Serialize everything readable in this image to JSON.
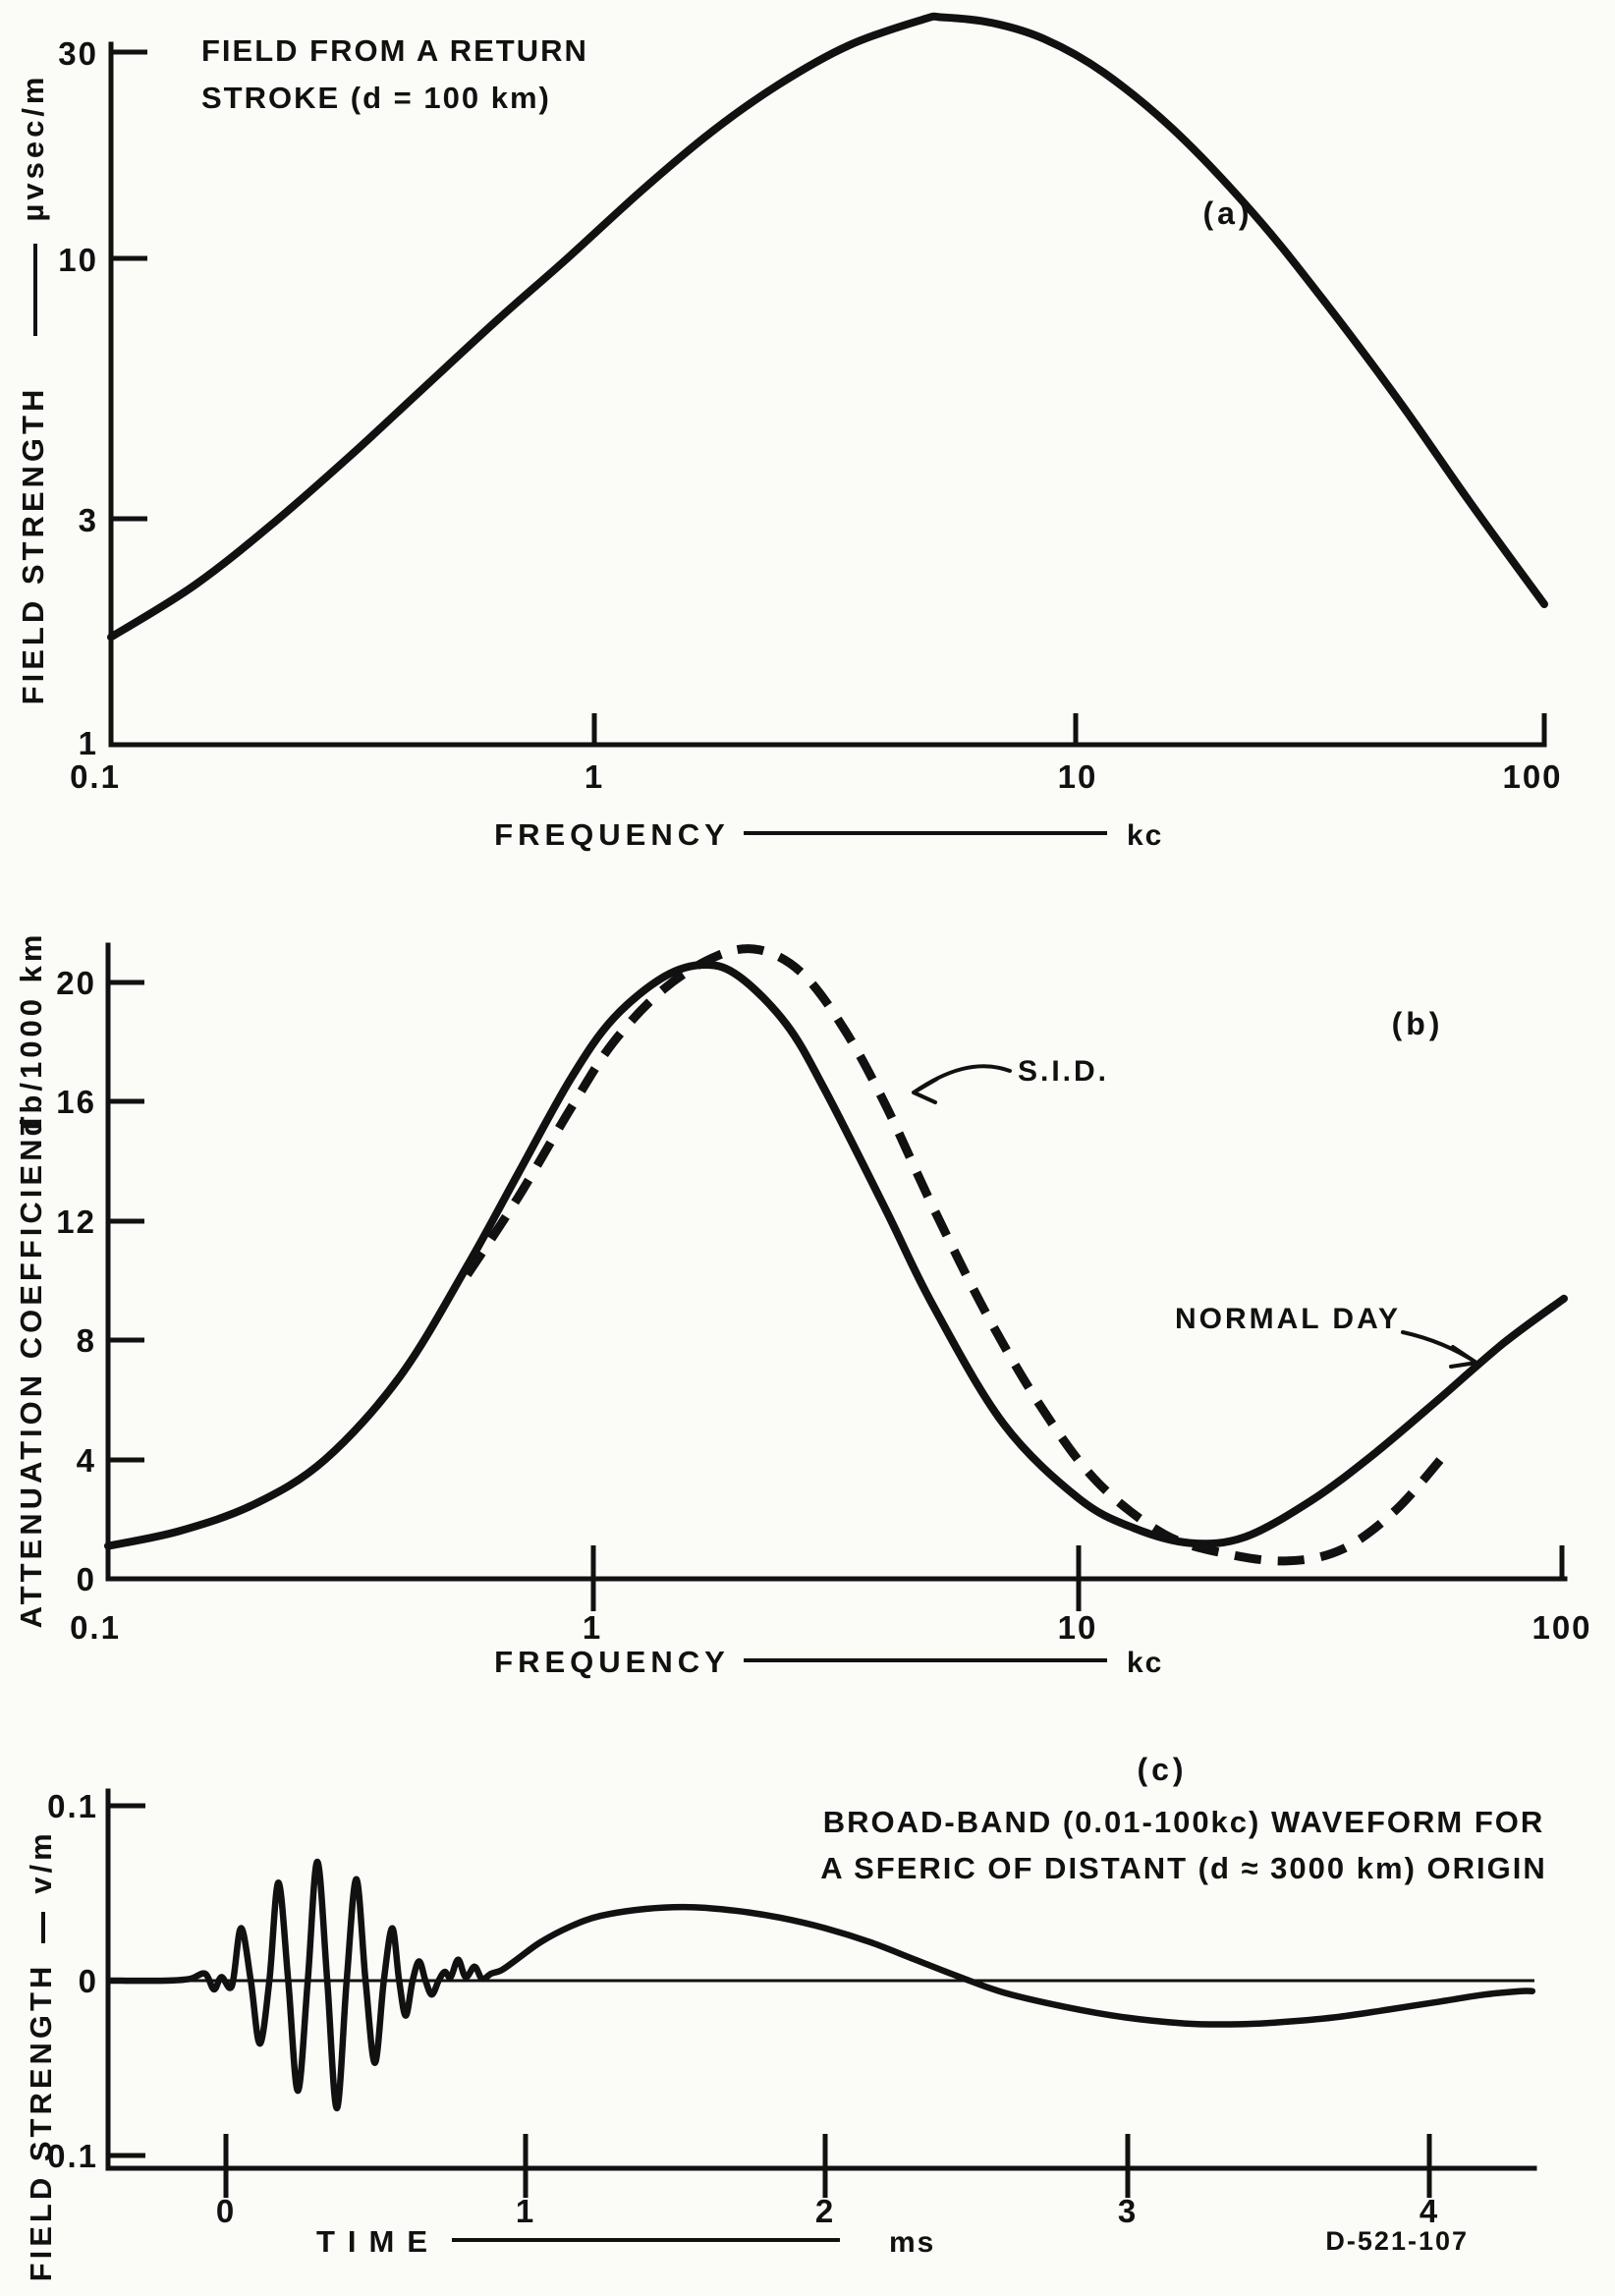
{
  "figure": {
    "code": "D-521-107",
    "ink_color": "#111111",
    "background_color": "#fbfbf8"
  },
  "chart_data": [
    {
      "id": "a",
      "type": "line",
      "panel_label": "(a)",
      "title": "FIELD FROM A RETURN STROKE (d = 100 km)",
      "title_lines": [
        "FIELD  FROM  A  RETURN",
        "STROKE  (d = 100  km)"
      ],
      "xlabel": "FREQUENCY",
      "x_unit": "kc",
      "x_scale": "log",
      "xlim": [
        0.1,
        100
      ],
      "x_ticks": [
        "0.1",
        "1",
        "10",
        "100"
      ],
      "ylabel": "FIELD STRENGTH",
      "y_unit": "µvsec/m",
      "y_scale": "log",
      "ylim": [
        1,
        40
      ],
      "y_ticks": [
        "30",
        "10",
        "3",
        "1"
      ],
      "grid": false,
      "series": [
        {
          "name": "field-strength-spectrum",
          "style": "solid",
          "points": [
            [
              0.1,
              1.7
            ],
            [
              0.15,
              2.2
            ],
            [
              0.22,
              3.0
            ],
            [
              0.32,
              4.2
            ],
            [
              0.45,
              5.8
            ],
            [
              0.65,
              8.2
            ],
            [
              0.9,
              11.0
            ],
            [
              1.3,
              15.5
            ],
            [
              1.8,
              20.5
            ],
            [
              2.5,
              26.0
            ],
            [
              3.5,
              31.5
            ],
            [
              5.0,
              35.8
            ],
            [
              5.5,
              36.2
            ],
            [
              7.0,
              35.2
            ],
            [
              9.0,
              32.5
            ],
            [
              12.0,
              27.5
            ],
            [
              17.0,
              20.5
            ],
            [
              25.0,
              13.5
            ],
            [
              35.0,
              8.8
            ],
            [
              50.0,
              5.4
            ],
            [
              70.0,
              3.3
            ],
            [
              100.0,
              2.0
            ]
          ]
        }
      ]
    },
    {
      "id": "b",
      "type": "line",
      "panel_label": "(b)",
      "title": "",
      "xlabel": "FREQUENCY",
      "x_unit": "kc",
      "x_scale": "log",
      "xlim": [
        0.1,
        100
      ],
      "x_ticks": [
        "0.1",
        "1",
        "10",
        "100"
      ],
      "ylabel": "ATTENUATION COEFFICIENT",
      "y_unit": "db/1000 km",
      "y_scale": "linear",
      "ylim": [
        0,
        22
      ],
      "y_ticks": [
        "20",
        "16",
        "12",
        "8",
        "4",
        "0"
      ],
      "grid": false,
      "series": [
        {
          "name": "normal-day",
          "label": "NORMAL  DAY",
          "style": "solid",
          "points": [
            [
              0.1,
              1.1
            ],
            [
              0.14,
              1.6
            ],
            [
              0.2,
              2.5
            ],
            [
              0.28,
              4.0
            ],
            [
              0.4,
              6.8
            ],
            [
              0.55,
              10.5
            ],
            [
              0.7,
              13.6
            ],
            [
              0.9,
              16.8
            ],
            [
              1.1,
              18.8
            ],
            [
              1.4,
              20.2
            ],
            [
              1.7,
              20.6
            ],
            [
              2.0,
              20.2
            ],
            [
              2.5,
              18.6
            ],
            [
              3.0,
              16.4
            ],
            [
              4.0,
              12.4
            ],
            [
              5.0,
              9.2
            ],
            [
              7.0,
              5.2
            ],
            [
              10.0,
              2.7
            ],
            [
              13.0,
              1.7
            ],
            [
              17.0,
              1.2
            ],
            [
              22.0,
              1.4
            ],
            [
              30.0,
              2.6
            ],
            [
              40.0,
              4.1
            ],
            [
              55.0,
              6.0
            ],
            [
              75.0,
              7.9
            ],
            [
              100.0,
              9.4
            ]
          ]
        },
        {
          "name": "sid",
          "label": "S.I.D.",
          "style": "dashed",
          "points": [
            [
              0.55,
              10.2
            ],
            [
              0.7,
              12.8
            ],
            [
              0.9,
              15.8
            ],
            [
              1.1,
              18.0
            ],
            [
              1.4,
              19.8
            ],
            [
              1.8,
              20.9
            ],
            [
              2.2,
              21.1
            ],
            [
              2.7,
              20.3
            ],
            [
              3.3,
              18.4
            ],
            [
              4.0,
              15.9
            ],
            [
              5.0,
              12.5
            ],
            [
              6.5,
              8.8
            ],
            [
              8.5,
              5.6
            ],
            [
              11.0,
              3.2
            ],
            [
              15.0,
              1.5
            ],
            [
              20.0,
              0.85
            ],
            [
              27.0,
              0.6
            ],
            [
              35.0,
              1.0
            ],
            [
              45.0,
              2.3
            ],
            [
              57.0,
              4.2
            ]
          ]
        }
      ]
    },
    {
      "id": "c",
      "type": "line",
      "panel_label": "(c)",
      "title": "BROAD-BAND (0.01-100kc) WAVEFORM FOR A SFERIC OF DISTANT (d ≈ 3000 km) ORIGIN",
      "title_lines": [
        "BROAD-BAND (0.01-100kc) WAVEFORM FOR",
        "A  SFERIC OF DISTANT  (d ≈ 3000 km) ORIGIN"
      ],
      "xlabel": "TIME",
      "x_unit": "ms",
      "x_scale": "linear",
      "xlim": [
        -0.39,
        4.37
      ],
      "x_ticks": [
        "0",
        "1",
        "2",
        "3",
        "4"
      ],
      "ylabel": "FIELD STRENGTH",
      "y_unit": "v/m",
      "y_scale": "linear",
      "ylim": [
        -0.1,
        0.1
      ],
      "y_ticks": [
        "0.1",
        "0",
        "0.1"
      ],
      "grid": false,
      "series": [
        {
          "name": "sferic-waveform",
          "style": "solid",
          "points": [
            [
              -0.39,
              0
            ],
            [
              -0.2,
              0
            ],
            [
              -0.12,
              0.001
            ],
            [
              -0.07,
              0.004
            ],
            [
              -0.04,
              -0.005
            ],
            [
              -0.015,
              0.002
            ],
            [
              0.02,
              -0.003
            ],
            [
              0.05,
              0.03
            ],
            [
              0.083,
              0
            ],
            [
              0.113,
              -0.036
            ],
            [
              0.145,
              0
            ],
            [
              0.175,
              0.056
            ],
            [
              0.208,
              0
            ],
            [
              0.24,
              -0.063
            ],
            [
              0.273,
              0
            ],
            [
              0.305,
              0.068
            ],
            [
              0.338,
              0
            ],
            [
              0.37,
              -0.073
            ],
            [
              0.403,
              0
            ],
            [
              0.435,
              0.058
            ],
            [
              0.466,
              0
            ],
            [
              0.497,
              -0.047
            ],
            [
              0.527,
              0
            ],
            [
              0.555,
              0.03
            ],
            [
              0.578,
              0
            ],
            [
              0.6,
              -0.02
            ],
            [
              0.623,
              0
            ],
            [
              0.645,
              0.011
            ],
            [
              0.666,
              0
            ],
            [
              0.687,
              -0.008
            ],
            [
              0.71,
              0
            ],
            [
              0.73,
              0.005
            ],
            [
              0.75,
              0.002
            ],
            [
              0.775,
              0.012
            ],
            [
              0.8,
              0.002
            ],
            [
              0.83,
              0.008
            ],
            [
              0.855,
              0.001
            ],
            [
              0.885,
              0.004
            ],
            [
              0.92,
              0.006
            ],
            [
              0.97,
              0.012
            ],
            [
              1.05,
              0.022
            ],
            [
              1.15,
              0.031
            ],
            [
              1.25,
              0.037
            ],
            [
              1.4,
              0.041
            ],
            [
              1.55,
              0.042
            ],
            [
              1.7,
              0.04
            ],
            [
              1.85,
              0.036
            ],
            [
              2.0,
              0.03
            ],
            [
              2.15,
              0.022
            ],
            [
              2.3,
              0.012
            ],
            [
              2.45,
              0.002
            ],
            [
              2.6,
              -0.007
            ],
            [
              2.8,
              -0.015
            ],
            [
              3.0,
              -0.021
            ],
            [
              3.2,
              -0.0245
            ],
            [
              3.35,
              -0.025
            ],
            [
              3.5,
              -0.024
            ],
            [
              3.7,
              -0.021
            ],
            [
              3.9,
              -0.016
            ],
            [
              4.05,
              -0.012
            ],
            [
              4.2,
              -0.008
            ],
            [
              4.32,
              -0.006
            ],
            [
              4.36,
              -0.006
            ]
          ]
        }
      ]
    }
  ]
}
